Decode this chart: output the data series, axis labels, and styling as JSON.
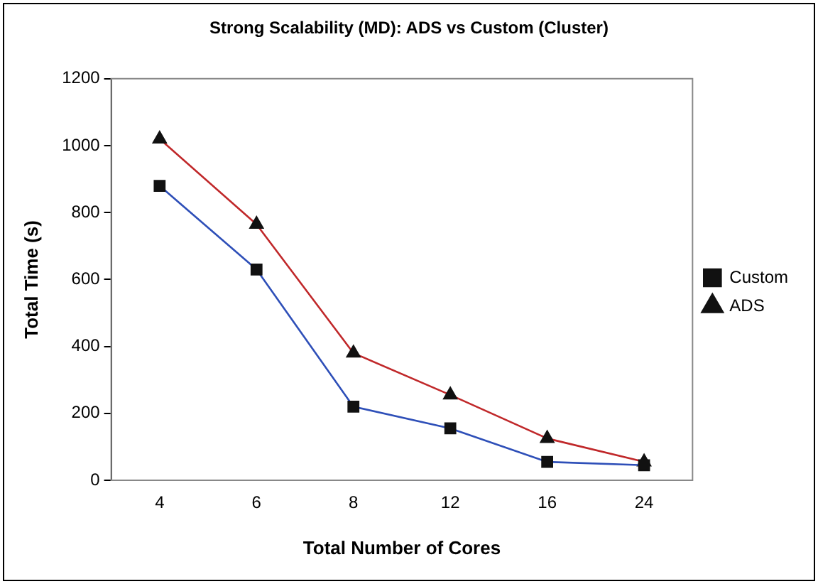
{
  "chart_data": {
    "type": "line",
    "title": "Strong Scalability (MD): ADS vs Custom (Cluster)",
    "xlabel": "Total Number of Cores",
    "ylabel": "Total Time (s)",
    "categories": [
      "4",
      "6",
      "8",
      "12",
      "16",
      "24"
    ],
    "series": [
      {
        "name": "Custom",
        "color": "#2e4fb8",
        "marker": "square",
        "values": [
          880,
          630,
          220,
          155,
          55,
          45
        ]
      },
      {
        "name": "ADS",
        "color": "#c0282a",
        "marker": "triangle",
        "values": [
          1020,
          765,
          380,
          255,
          125,
          55
        ]
      }
    ],
    "ylim": [
      0,
      1200
    ],
    "yticks": [
      0,
      200,
      400,
      600,
      800,
      1000,
      1200
    ],
    "grid": false,
    "legend": "right"
  }
}
